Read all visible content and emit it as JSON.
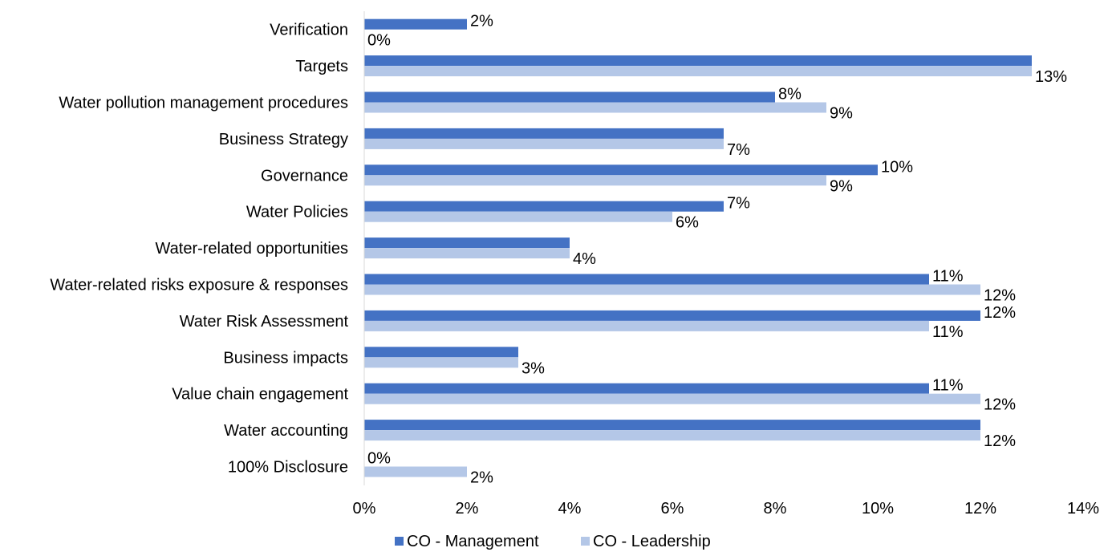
{
  "chart_data": {
    "type": "bar",
    "orientation": "horizontal",
    "categories": [
      "Verification",
      "Targets",
      "Water pollution management procedures",
      "Business Strategy",
      "Governance",
      "Water Policies",
      "Water-related opportunities",
      "Water-related risks exposure & responses",
      "Water Risk Assessment",
      "Business impacts",
      "Value chain engagement",
      "Water accounting",
      "100% Disclosure"
    ],
    "series": [
      {
        "name": "CO - Management",
        "color": "#4472C4",
        "values": [
          2,
          13,
          8,
          7,
          10,
          7,
          4,
          11,
          12,
          3,
          11,
          12,
          0
        ],
        "labels": [
          "2%",
          "",
          "8%",
          "",
          "10%",
          "7%",
          "",
          "11%",
          "12%",
          "",
          "11%",
          "",
          "0%"
        ]
      },
      {
        "name": "CO - Leadership",
        "color": "#B4C7E7",
        "values": [
          0,
          13,
          9,
          7,
          9,
          6,
          4,
          12,
          11,
          3,
          12,
          12,
          2
        ],
        "labels": [
          "0%",
          "13%",
          "9%",
          "7%",
          "9%",
          "6%",
          "4%",
          "12%",
          "11%",
          "3%",
          "12%",
          "12%",
          "2%"
        ]
      }
    ],
    "xlim": [
      0,
      14
    ],
    "xticks": [
      "0%",
      "2%",
      "4%",
      "6%",
      "8%",
      "10%",
      "12%",
      "14%"
    ],
    "title": "",
    "xlabel": "",
    "ylabel": "",
    "grid": false,
    "legend_position": "bottom"
  }
}
